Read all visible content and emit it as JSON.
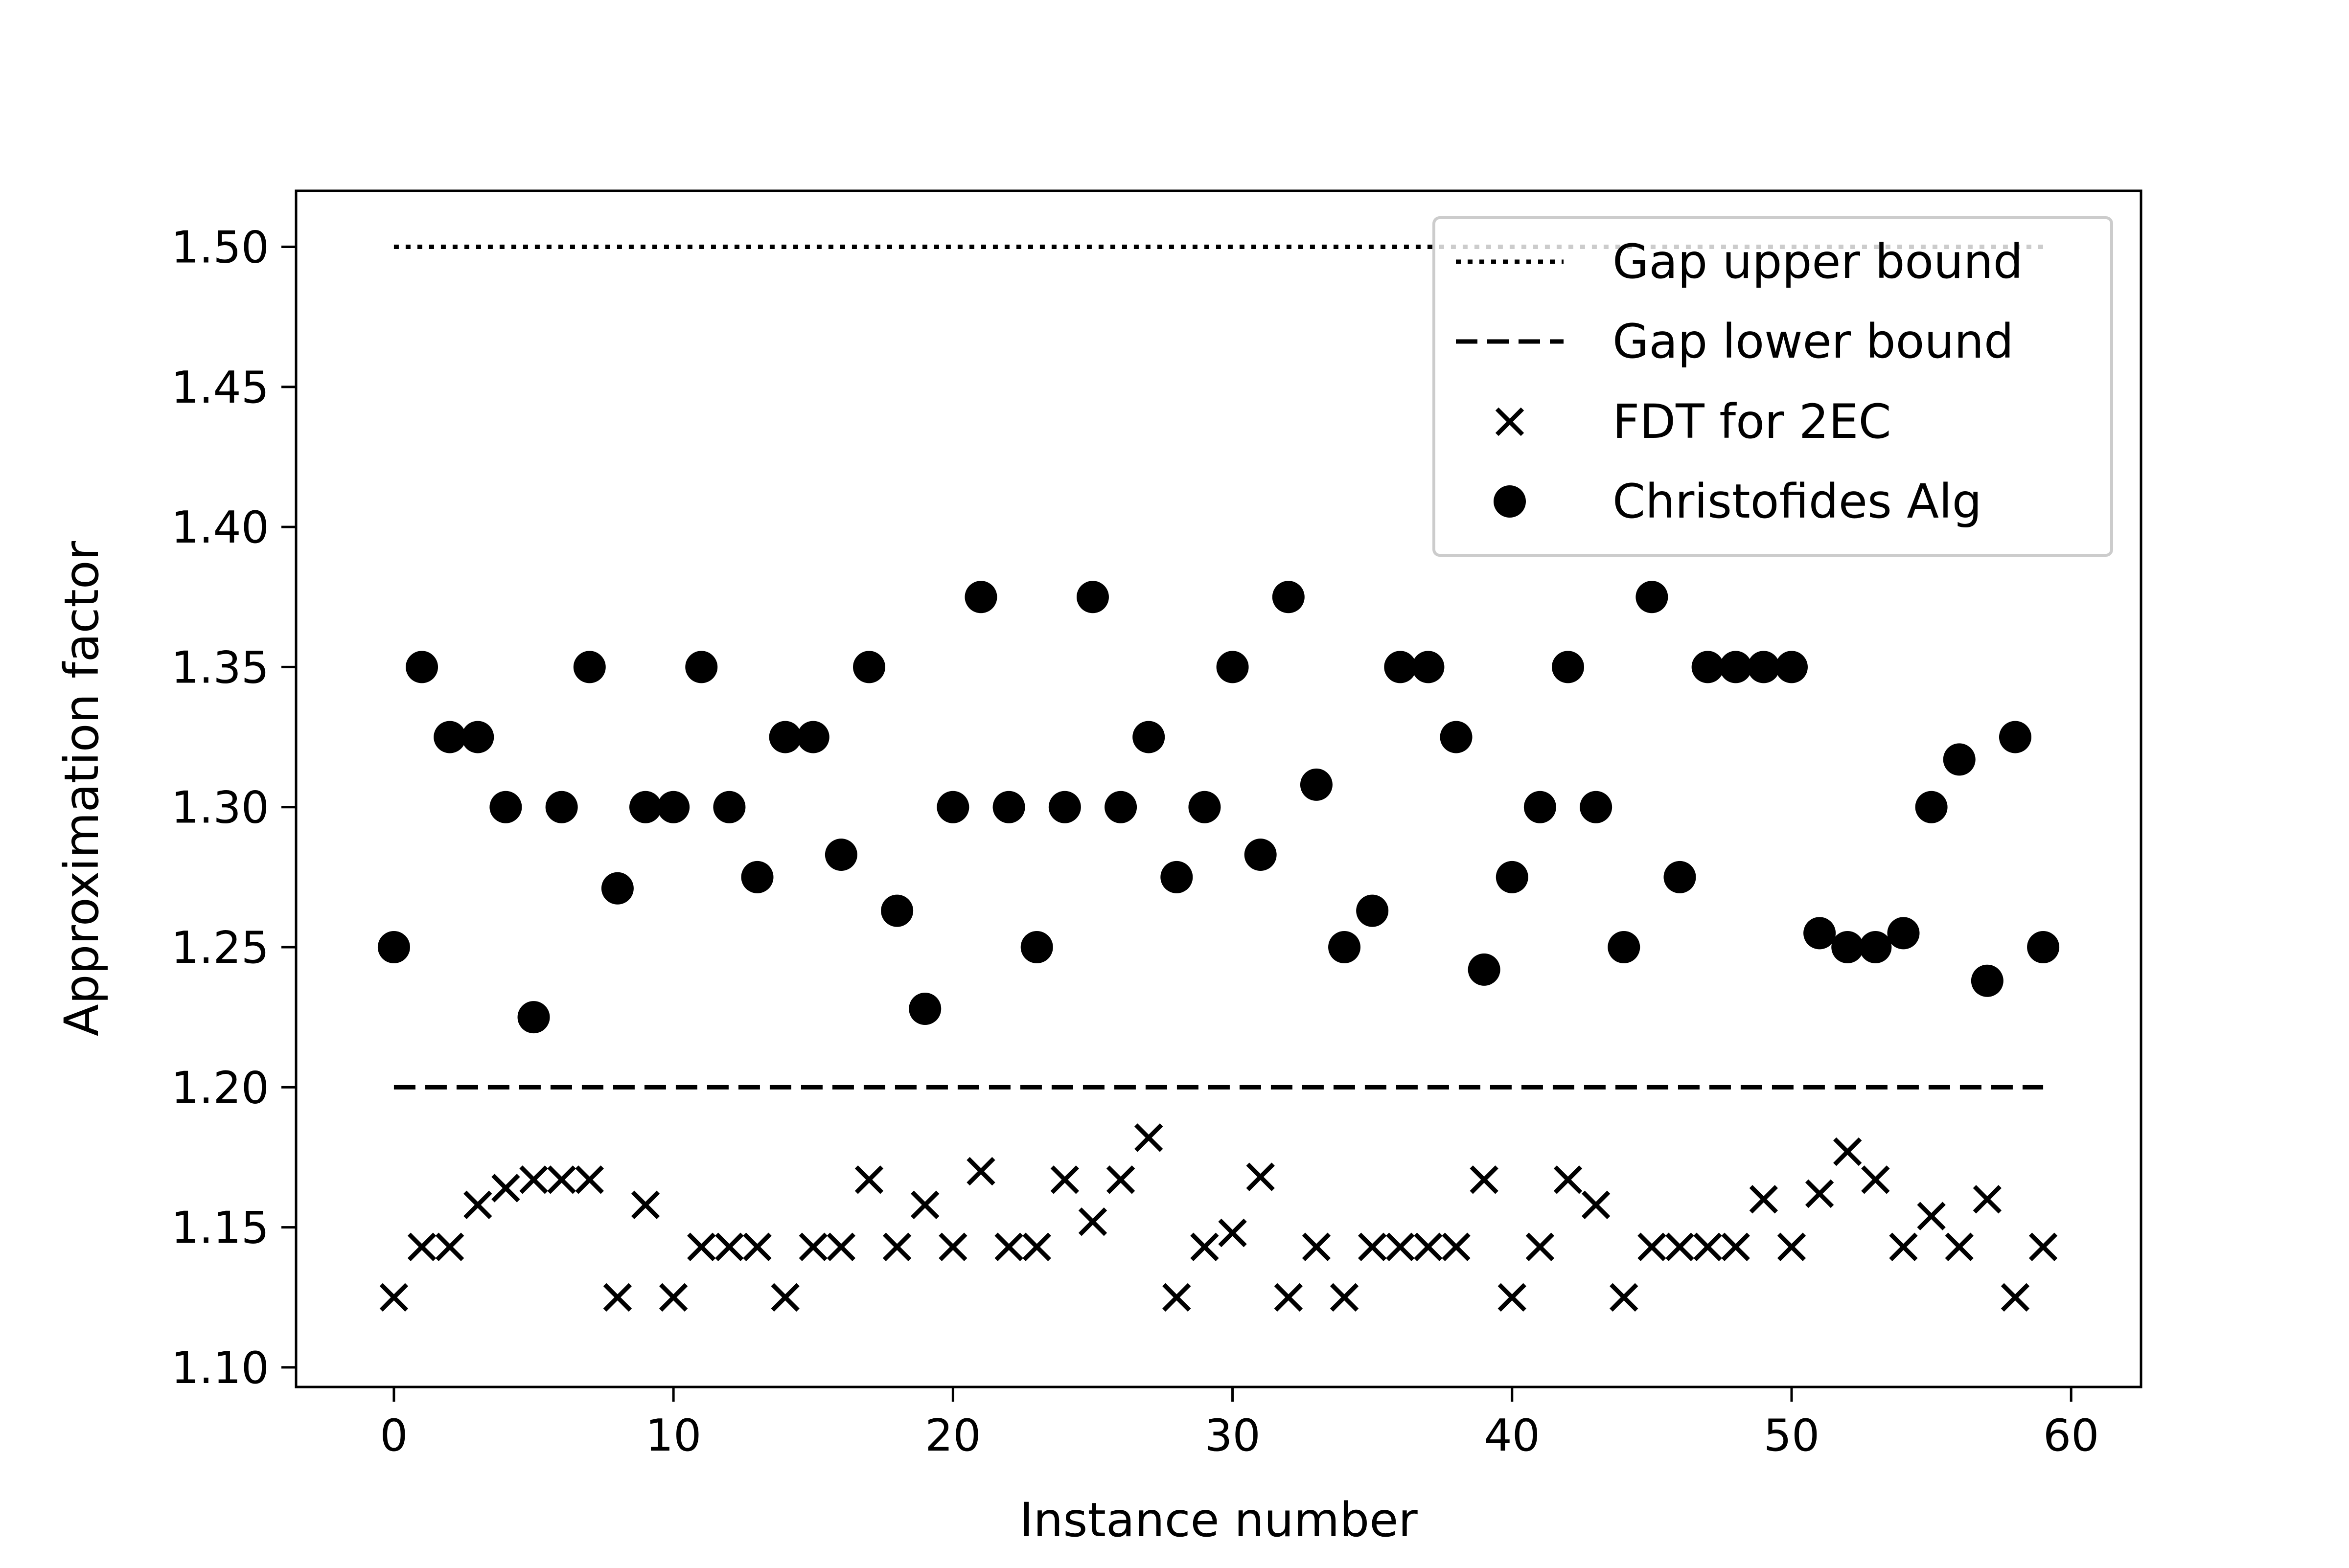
{
  "chart_data": {
    "type": "scatter",
    "title": "",
    "xlabel": "Instance number",
    "ylabel": "Approximation factor",
    "xlim": [
      -3.5,
      62.5
    ],
    "ylim": [
      1.093,
      1.52
    ],
    "x_ticks": [
      0,
      10,
      20,
      30,
      40,
      50,
      60
    ],
    "x_tick_labels": [
      "0",
      "10",
      "20",
      "30",
      "40",
      "50",
      "60"
    ],
    "y_ticks": [
      1.1,
      1.15,
      1.2,
      1.25,
      1.3,
      1.35,
      1.4,
      1.45,
      1.5
    ],
    "y_tick_labels": [
      "1.10",
      "1.15",
      "1.20",
      "1.25",
      "1.30",
      "1.35",
      "1.40",
      "1.45",
      "1.50"
    ],
    "grid": false,
    "legend_placement": "top-right",
    "series": [
      {
        "name": "Gap upper bound",
        "kind": "line",
        "line_style": "dotted",
        "x": [
          0,
          59
        ],
        "y": [
          1.5,
          1.5
        ]
      },
      {
        "name": "Gap lower bound",
        "kind": "line",
        "line_style": "dashed",
        "x": [
          0,
          59
        ],
        "y": [
          1.2,
          1.2
        ]
      },
      {
        "name": "FDT for 2EC",
        "kind": "scatter",
        "marker": "x",
        "x": [
          0,
          1,
          2,
          3,
          4,
          5,
          6,
          7,
          8,
          9,
          10,
          11,
          12,
          13,
          14,
          15,
          16,
          17,
          18,
          19,
          20,
          21,
          22,
          23,
          24,
          25,
          26,
          27,
          28,
          29,
          30,
          31,
          32,
          33,
          34,
          35,
          36,
          37,
          38,
          39,
          40,
          41,
          42,
          43,
          44,
          45,
          46,
          47,
          48,
          49,
          50,
          51,
          52,
          53,
          54,
          55,
          56,
          57,
          58,
          59
        ],
        "y": [
          1.125,
          1.143,
          1.143,
          1.158,
          1.164,
          1.167,
          1.167,
          1.167,
          1.125,
          1.158,
          1.125,
          1.143,
          1.143,
          1.143,
          1.125,
          1.143,
          1.143,
          1.167,
          1.143,
          1.158,
          1.143,
          1.17,
          1.143,
          1.143,
          1.167,
          1.152,
          1.167,
          1.182,
          1.125,
          1.143,
          1.148,
          1.168,
          1.125,
          1.143,
          1.125,
          1.143,
          1.143,
          1.143,
          1.143,
          1.167,
          1.125,
          1.143,
          1.167,
          1.158,
          1.125,
          1.143,
          1.143,
          1.143,
          1.143,
          1.16,
          1.143,
          1.162,
          1.177,
          1.167,
          1.143,
          1.154,
          1.143,
          1.16,
          1.125,
          1.143
        ]
      },
      {
        "name": "Christofides Alg",
        "kind": "scatter",
        "marker": "circle",
        "x": [
          0,
          1,
          2,
          3,
          4,
          5,
          6,
          7,
          8,
          9,
          10,
          11,
          12,
          13,
          14,
          15,
          16,
          17,
          18,
          19,
          20,
          21,
          22,
          23,
          24,
          25,
          26,
          27,
          28,
          29,
          30,
          31,
          32,
          33,
          34,
          35,
          36,
          37,
          38,
          39,
          40,
          41,
          42,
          43,
          44,
          45,
          46,
          47,
          48,
          49,
          50,
          51,
          52,
          53,
          54,
          55,
          56,
          57,
          58,
          59
        ],
        "y": [
          1.25,
          1.35,
          1.325,
          1.325,
          1.3,
          1.225,
          1.3,
          1.35,
          1.271,
          1.3,
          1.3,
          1.35,
          1.3,
          1.275,
          1.325,
          1.325,
          1.283,
          1.35,
          1.263,
          1.228,
          1.3,
          1.375,
          1.3,
          1.25,
          1.3,
          1.375,
          1.3,
          1.325,
          1.275,
          1.3,
          1.35,
          1.283,
          1.375,
          1.308,
          1.25,
          1.263,
          1.35,
          1.35,
          1.325,
          1.242,
          1.275,
          1.3,
          1.35,
          1.3,
          1.25,
          1.375,
          1.275,
          1.35,
          1.35,
          1.35,
          1.35,
          1.255,
          1.25,
          1.25,
          1.255,
          1.3,
          1.317,
          1.238,
          1.325,
          1.25
        ]
      }
    ]
  }
}
